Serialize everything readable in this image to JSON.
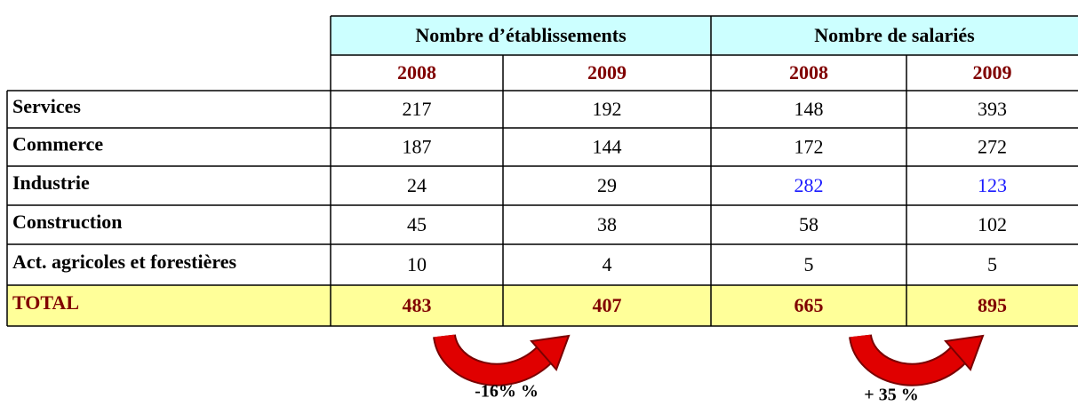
{
  "table": {
    "groups": [
      {
        "title": "Nombre d’établissements",
        "years": [
          2008,
          2009
        ]
      },
      {
        "title": "Nombre de salariés",
        "years": [
          2008,
          2009
        ]
      }
    ],
    "rows": [
      {
        "label": "Services",
        "values": [
          217,
          192,
          148,
          393
        ]
      },
      {
        "label": "Commerce",
        "values": [
          187,
          144,
          172,
          272
        ]
      },
      {
        "label": "Industrie",
        "values": [
          24,
          29,
          282,
          123
        ]
      },
      {
        "label": "Construction",
        "values": [
          45,
          38,
          58,
          102
        ]
      },
      {
        "label": "Act. agricoles et forestières",
        "values": [
          10,
          4,
          5,
          5
        ]
      }
    ],
    "total": {
      "label": "TOTAL",
      "values": [
        483,
        407,
        665,
        895
      ]
    }
  },
  "annotations": [
    "-16%  %",
    "+ 35 %"
  ]
}
